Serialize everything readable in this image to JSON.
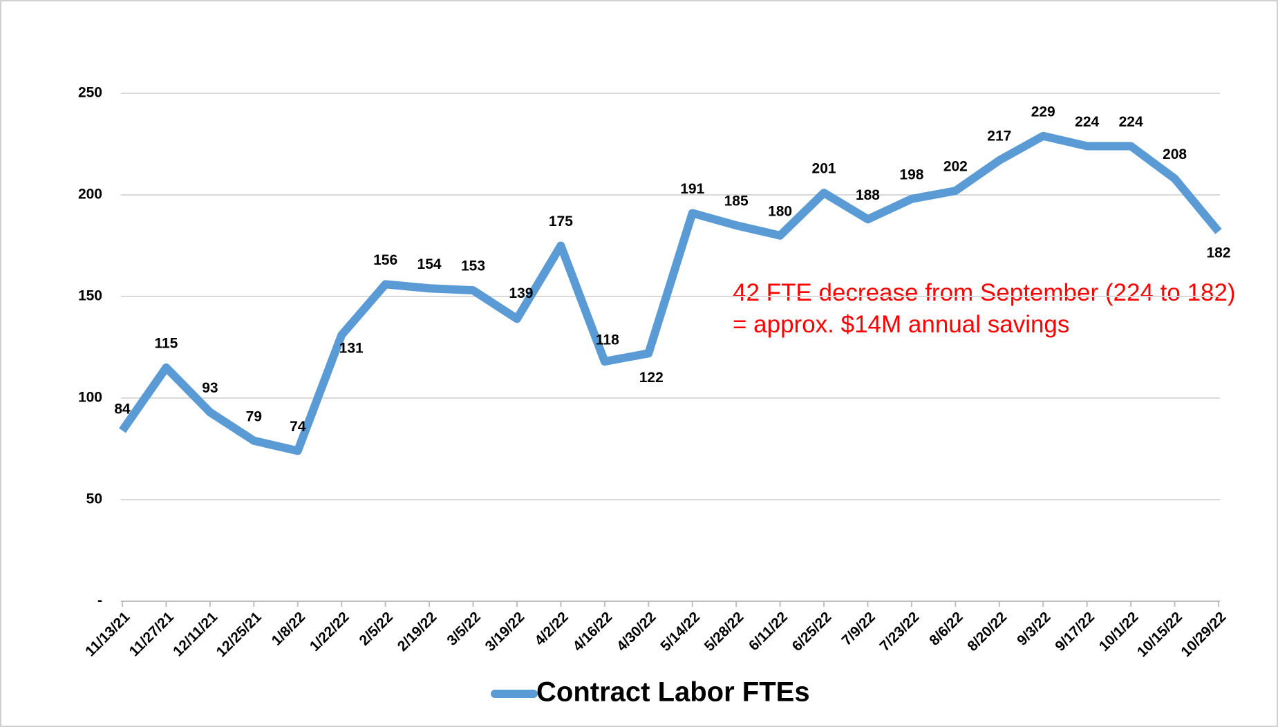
{
  "chart_data": {
    "type": "line",
    "categories": [
      "11/13/21",
      "11/27/21",
      "12/11/21",
      "12/25/21",
      "1/8/22",
      "1/22/22",
      "2/5/22",
      "2/19/22",
      "3/5/22",
      "3/19/22",
      "4/2/22",
      "4/16/22",
      "4/30/22",
      "5/14/22",
      "5/28/22",
      "6/11/22",
      "6/25/22",
      "7/9/22",
      "7/23/22",
      "8/6/22",
      "8/20/22",
      "9/3/22",
      "9/17/22",
      "10/1/22",
      "10/15/22",
      "10/29/22"
    ],
    "series": [
      {
        "name": "Contract Labor FTEs",
        "color": "#5b9bd5",
        "values": [
          84,
          115,
          93,
          79,
          74,
          131,
          156,
          154,
          153,
          139,
          175,
          118,
          122,
          191,
          185,
          180,
          201,
          188,
          198,
          202,
          217,
          229,
          224,
          224,
          208,
          182
        ]
      }
    ],
    "ylim": [
      0,
      250
    ],
    "yticks": [
      {
        "value": 0,
        "label": "-"
      },
      50,
      100,
      150,
      200,
      250
    ],
    "grid": true,
    "legend": "bottom",
    "annotations": [
      "42 FTE decrease from September (224 to 182)",
      "= approx. $14M annual savings"
    ]
  }
}
